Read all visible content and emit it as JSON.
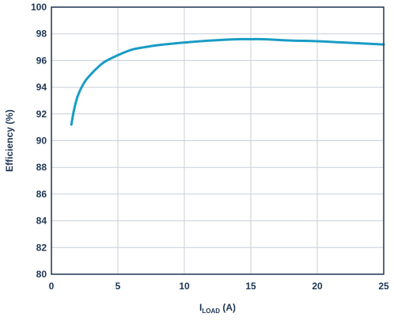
{
  "chart_data": {
    "type": "line",
    "xlabel": {
      "main": "I",
      "sub": "LOAD",
      "unit": " (A)"
    },
    "ylabel": "Efficiency (%)",
    "xlim": [
      0,
      25
    ],
    "ylim": [
      80,
      100
    ],
    "x_ticks": [
      0,
      5,
      10,
      15,
      20,
      25
    ],
    "y_ticks": [
      80,
      82,
      84,
      86,
      88,
      90,
      92,
      94,
      96,
      98,
      100
    ],
    "x_tick_labels": [
      "0",
      "5",
      "10",
      "15",
      "20",
      "25"
    ],
    "y_tick_labels": [
      "80",
      "82",
      "84",
      "86",
      "88",
      "90",
      "92",
      "94",
      "96",
      "98",
      "100"
    ],
    "grid": true,
    "line_color": "#1a9cc4",
    "series": [
      {
        "x": [
          1.5,
          1.7,
          2.0,
          2.5,
          3.0,
          3.5,
          4.0,
          5.0,
          6.0,
          7.0,
          8.0,
          10.0,
          12.0,
          14.0,
          15.0,
          16.0,
          18.0,
          20.0,
          22.0,
          25.0
        ],
        "y": [
          91.2,
          92.3,
          93.4,
          94.4,
          95.0,
          95.5,
          95.9,
          96.4,
          96.8,
          97.0,
          97.15,
          97.35,
          97.5,
          97.6,
          97.6,
          97.6,
          97.5,
          97.45,
          97.35,
          97.2
        ]
      }
    ]
  }
}
